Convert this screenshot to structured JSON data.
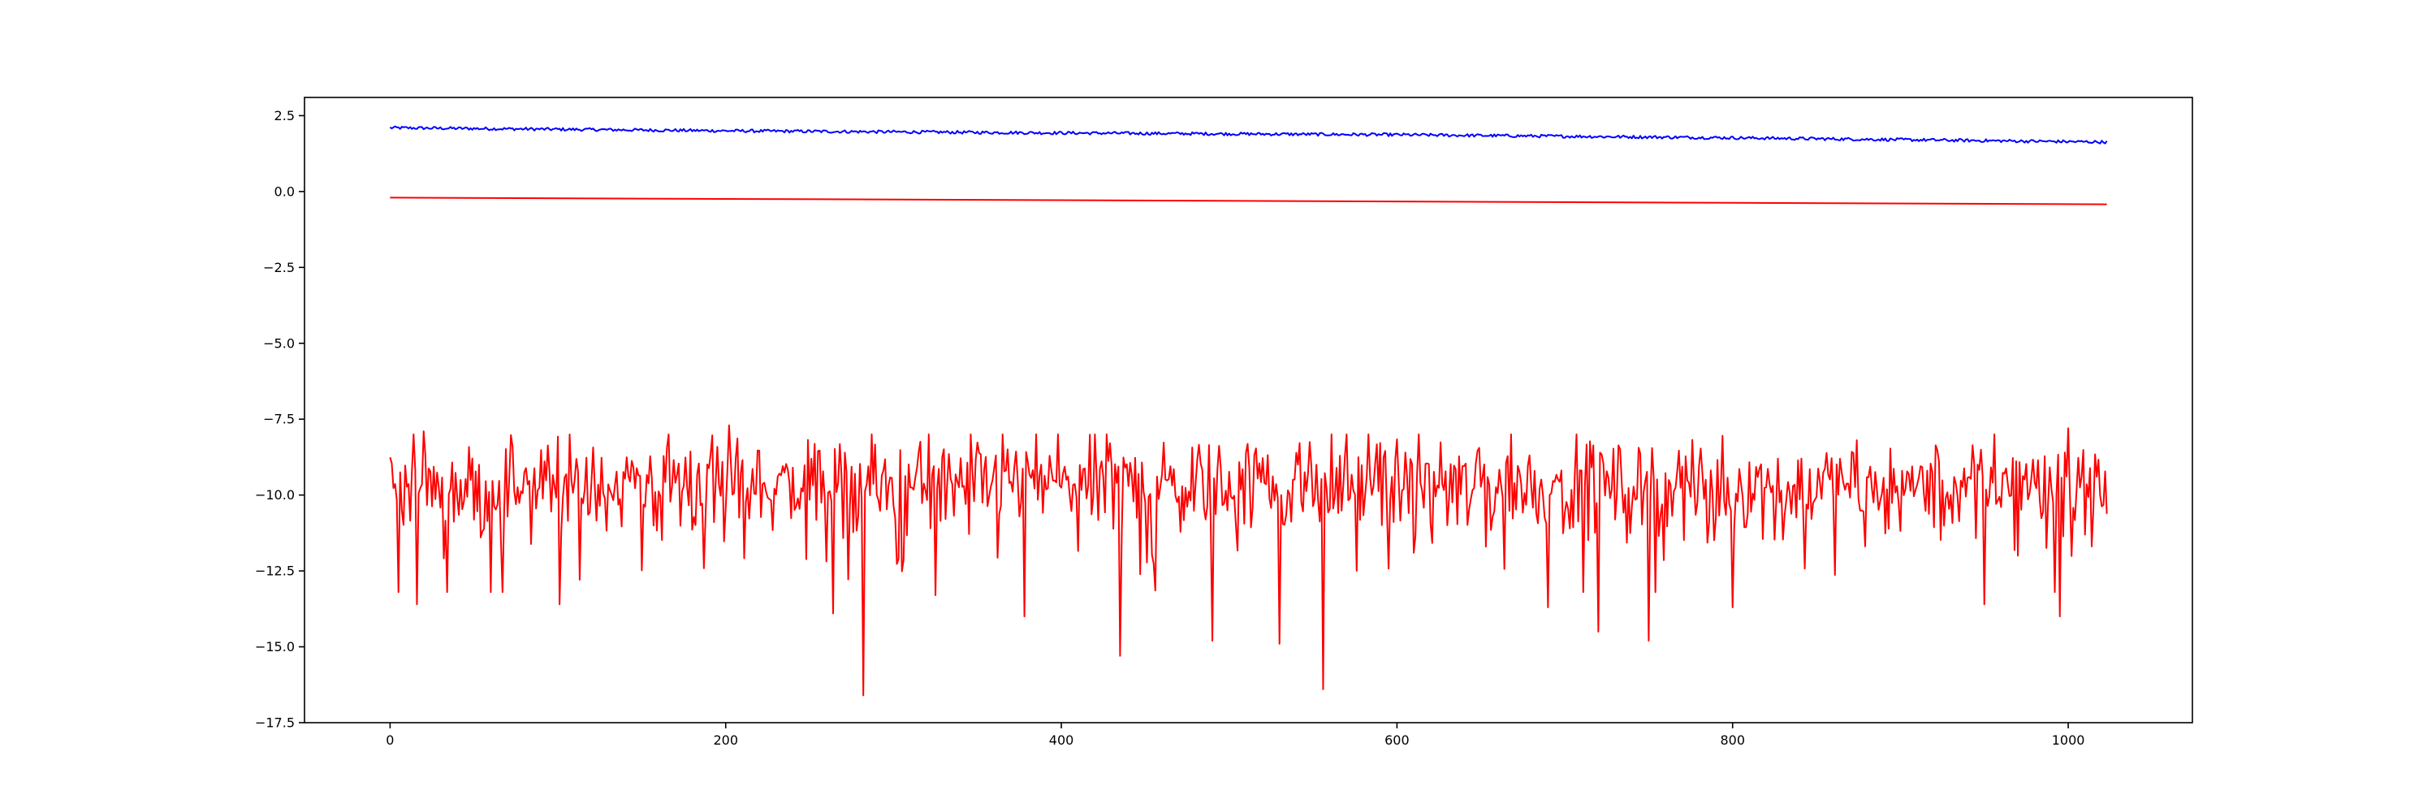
{
  "chart_data": {
    "type": "line",
    "title": "",
    "xlabel": "",
    "ylabel": "",
    "xlim": [
      -51,
      1074
    ],
    "ylim": [
      -17.5,
      3.1
    ],
    "x_ticks": [
      0,
      200,
      400,
      600,
      800,
      1000
    ],
    "x_tick_labels": [
      "0",
      "200",
      "400",
      "600",
      "800",
      "1000"
    ],
    "y_ticks": [
      2.5,
      0.0,
      -2.5,
      -5.0,
      -7.5,
      -10.0,
      -12.5,
      -15.0,
      -17.5
    ],
    "y_tick_labels": [
      "2.5",
      "0.0",
      "−2.5",
      "−5.0",
      "−7.5",
      "−10.0",
      "−12.5",
      "−15.0",
      "−17.5"
    ],
    "grid": false,
    "legend": "none",
    "n_points": 1024,
    "series": [
      {
        "color": "#0000ff",
        "style": "noisy",
        "trend_x": [
          0,
          200,
          400,
          600,
          800,
          1023
        ],
        "trend_y": [
          2.1,
          2.0,
          1.93,
          1.87,
          1.77,
          1.63
        ],
        "noise_amplitude": 0.05
      },
      {
        "color": "#ff0000",
        "style": "straight",
        "x": [
          0,
          1023
        ],
        "y": [
          -0.2,
          -0.42
        ]
      },
      {
        "color": "#ff0000",
        "style": "noisy",
        "trend_x": [
          0,
          1023
        ],
        "trend_y": [
          -9.7,
          -9.7
        ],
        "typical_range": [
          -12.0,
          -8.0
        ],
        "noise_amplitude": 1.0,
        "extreme_points": [
          {
            "x": 5,
            "y": -13.2
          },
          {
            "x": 16,
            "y": -13.6
          },
          {
            "x": 20,
            "y": -7.9
          },
          {
            "x": 67,
            "y": -13.2
          },
          {
            "x": 101,
            "y": -13.6
          },
          {
            "x": 202,
            "y": -7.7
          },
          {
            "x": 264,
            "y": -13.9
          },
          {
            "x": 282,
            "y": -16.6
          },
          {
            "x": 325,
            "y": -13.3
          },
          {
            "x": 365,
            "y": -8.0
          },
          {
            "x": 378,
            "y": -14.0
          },
          {
            "x": 435,
            "y": -15.3
          },
          {
            "x": 490,
            "y": -14.8
          },
          {
            "x": 530,
            "y": -14.9
          },
          {
            "x": 556,
            "y": -16.4
          },
          {
            "x": 690,
            "y": -13.7
          },
          {
            "x": 720,
            "y": -14.5
          },
          {
            "x": 750,
            "y": -14.8
          },
          {
            "x": 800,
            "y": -13.7
          },
          {
            "x": 950,
            "y": -13.6
          },
          {
            "x": 995,
            "y": -14.0
          },
          {
            "x": 1000,
            "y": -7.8
          }
        ]
      }
    ]
  }
}
